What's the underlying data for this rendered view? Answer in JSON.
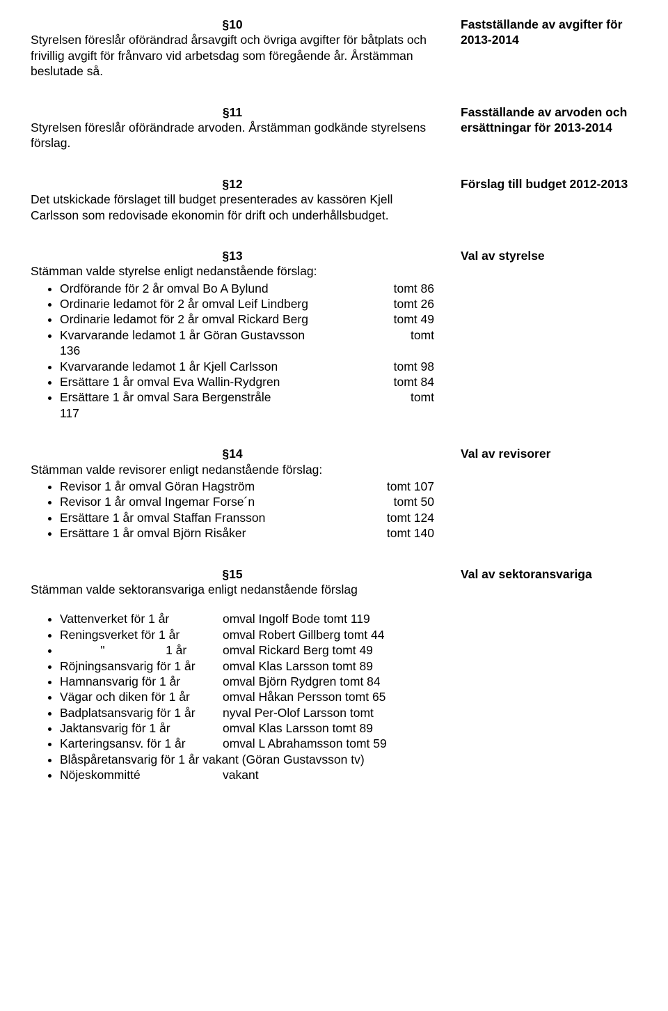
{
  "s10": {
    "num": "§10",
    "body": "Styrelsen föreslår oförändrad årsavgift och övriga avgifter för båtplats och frivillig avgift för frånvaro vid arbetsdag som föregående år. Årstämman beslutade så.",
    "heading": "Fastställande av avgifter för 2013-2014"
  },
  "s11": {
    "num": "§11",
    "body": "Styrelsen föreslår oförändrade arvoden. Årstämman godkände styrelsens förslag.",
    "heading": "Fasställande av arvoden och ersättningar för 2013-2014"
  },
  "s12": {
    "num": "§12",
    "body": "Det utskickade förslaget till budget presenterades av kassören Kjell Carlsson som redovisade ekonomin för drift och underhållsbudget.",
    "heading": "Förslag till budget 2012-2013"
  },
  "s13": {
    "num": "§13",
    "intro": "Stämman valde styrelse enligt nedanstående förslag:",
    "heading": "Val av styrelse",
    "items": [
      {
        "l": "Ordförande för 2 år omval Bo A Bylund",
        "r": "tomt 86"
      },
      {
        "l": "Ordinarie ledamot för 2 år omval Leif Lindberg",
        "r": "tomt 26"
      },
      {
        "l": "Ordinarie ledamot för 2 år omval Rickard Berg",
        "r": "tomt 49"
      },
      {
        "l": "Kvarvarande ledamot 1 år Göran Gustavsson\n136",
        "r": "tomt"
      },
      {
        "l": "Kvarvarande ledamot 1 år Kjell Carlsson",
        "r": "tomt 98"
      },
      {
        "l": "Ersättare 1 år omval Eva Wallin-Rydgren",
        "r": "tomt 84"
      },
      {
        "l": "Ersättare 1 år omval Sara Bergenstråle\n117",
        "r": "tomt"
      }
    ]
  },
  "s14": {
    "num": "§14",
    "intro": "Stämman valde revisorer enligt nedanstående förslag:",
    "heading": "Val av revisorer",
    "items": [
      {
        "l": "Revisor 1 år omval Göran Hagström",
        "r": "tomt 107"
      },
      {
        "l": "Revisor 1 år omval Ingemar Forse´n",
        "r": "tomt 50"
      },
      {
        "l": "Ersättare 1 år omval Staffan Fransson",
        "r": "tomt 124"
      },
      {
        "l": "Ersättare 1 år omval Björn Risåker",
        "r": "tomt 140"
      }
    ]
  },
  "s15": {
    "num": "§15",
    "intro": "Stämman valde sektoransvariga enligt nedanstående förslag",
    "heading": "Val av sektoransvariga",
    "items": [
      {
        "l": "Vattenverket för 1 år",
        "r": "omval Ingolf Bode tomt 119"
      },
      {
        "l": "Reningsverket för 1 år",
        "r": "omval Robert Gillberg tomt 44"
      },
      {
        "l": "            \"                  1 år",
        "r": "omval Rickard Berg tomt 49"
      },
      {
        "l": "Röjningsansvarig för 1 år",
        "r": "omval Klas Larsson tomt 89"
      },
      {
        "l": "Hamnansvarig för 1 år",
        "r": "omval Björn Rydgren tomt 84"
      },
      {
        "l": "Vägar och diken för 1 år",
        "r": "omval Håkan Persson tomt 65"
      },
      {
        "l": "Badplatsansvarig för 1 år",
        "r": "nyval Per-Olof Larsson tomt"
      },
      {
        "l": "Jaktansvarig för 1 år",
        "r": "omval Klas Larsson tomt 89"
      },
      {
        "l": "Karteringsansv. för 1 år",
        "r": "omval L Abrahamsson tomt 59"
      },
      {
        "l": "Blåspåretansvarig för 1 år vakant (Göran Gustavsson tv)",
        "r": ""
      },
      {
        "l": "Nöjeskommitté",
        "r": "vakant"
      }
    ]
  }
}
